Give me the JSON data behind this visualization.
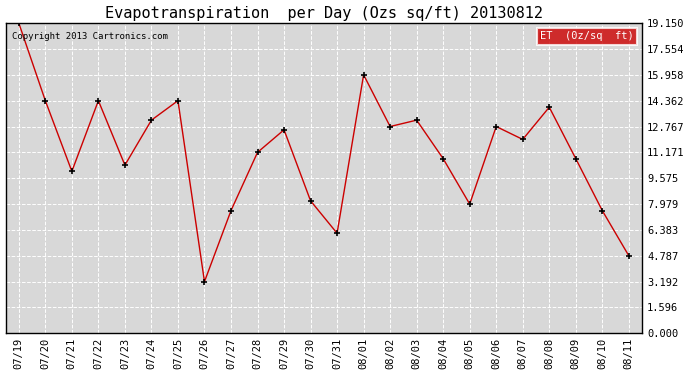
{
  "title": "Evapotranspiration  per Day (Ozs sq/ft) 20130812",
  "copyright_text": "Copyright 2013 Cartronics.com",
  "legend_label": "ET  (0z/sq  ft)",
  "background_color": "#ffffff",
  "plot_bg_color": "#d8d8d8",
  "line_color": "#cc0000",
  "marker_color": "#000000",
  "legend_bg": "#cc0000",
  "legend_text_color": "#ffffff",
  "x_labels": [
    "07/19",
    "07/20",
    "07/21",
    "07/22",
    "07/23",
    "07/24",
    "07/25",
    "07/26",
    "07/27",
    "07/28",
    "07/29",
    "07/30",
    "07/31",
    "08/01",
    "08/02",
    "08/03",
    "08/04",
    "08/05",
    "08/06",
    "08/07",
    "08/08",
    "08/09",
    "08/10",
    "08/11"
  ],
  "y_values": [
    19.15,
    14.362,
    10.0,
    14.362,
    10.384,
    13.16,
    14.362,
    3.192,
    7.575,
    11.171,
    12.564,
    8.181,
    6.178,
    15.958,
    12.767,
    13.16,
    10.782,
    7.979,
    12.767,
    11.97,
    13.96,
    10.782,
    7.575,
    4.787
  ],
  "ylim": [
    0.0,
    19.15
  ],
  "yticks": [
    0.0,
    1.596,
    3.192,
    4.787,
    6.383,
    7.979,
    9.575,
    11.171,
    12.767,
    14.362,
    15.958,
    17.554,
    19.15
  ],
  "grid_color": "#ffffff",
  "title_fontsize": 11,
  "tick_fontsize": 7.5
}
